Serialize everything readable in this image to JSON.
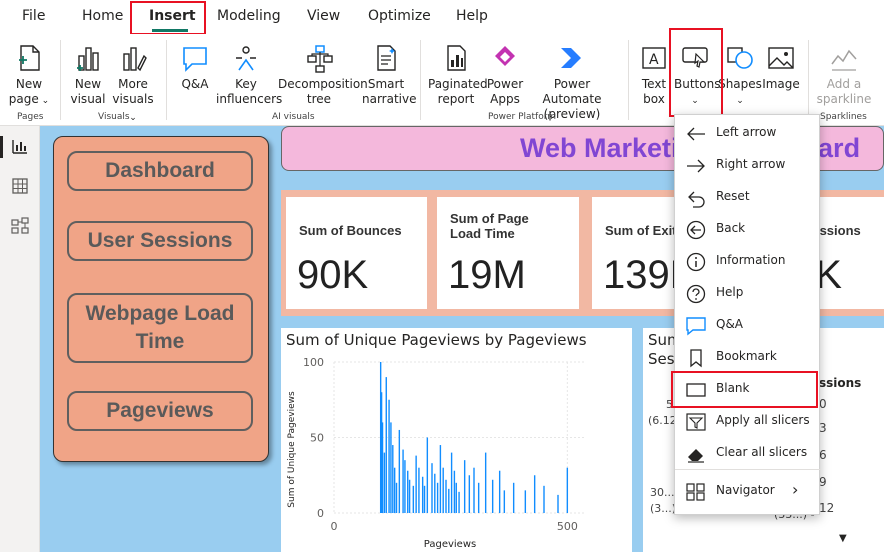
{
  "menu": {
    "items": [
      "File",
      "Home",
      "Insert",
      "Modeling",
      "View",
      "Optimize",
      "Help"
    ],
    "active": "Insert"
  },
  "ribbon": {
    "buttons": {
      "new_page": "New page",
      "new_visual": "New visual",
      "more_visuals": "More visuals",
      "qa": "Q&A",
      "key_influencers": "Key influencers",
      "decomposition_tree": "Decomposition tree",
      "smart_narrative": "Smart narrative",
      "paginated_report": "Paginated report",
      "power_apps": "Power Apps",
      "power_automate": "Power Automate (preview)",
      "text_box": "Text box",
      "buttons": "Buttons",
      "shapes": "Shapes",
      "image": "Image",
      "add_sparkline": "Add a sparkline"
    },
    "groups": {
      "pages": "Pages",
      "visuals": "Visuals",
      "ai_visuals": "AI visuals",
      "power_platform": "Power Platform",
      "sparklines": "Sparklines"
    }
  },
  "nav_buttons": [
    "Dashboard",
    "User Sessions",
    "Webpage Load Time",
    "Pageviews"
  ],
  "banner_title": "Web Marketing Dashboard",
  "kpis": [
    {
      "title": "Sum of Bounces",
      "value": "90K"
    },
    {
      "title": "Sum of Page Load Time",
      "value": "19M"
    },
    {
      "title": "Sum of Exits",
      "value": "139K"
    },
    {
      "title": "Sum of Sessions",
      "value": "5K"
    }
  ],
  "card2": {
    "title_line1": "Sum",
    "title_line2": "Ses",
    "header_right": "ssions",
    "left_values": [
      "5",
      "(6.12",
      "30...",
      "(3...)"
    ],
    "right_values": [
      "0",
      "3",
      "6",
      "9",
      "12"
    ],
    "right_truncated": "(33...) -"
  },
  "buttons_menu": {
    "items": [
      "Left arrow",
      "Right arrow",
      "Reset",
      "Back",
      "Information",
      "Help",
      "Q&A",
      "Bookmark",
      "Blank",
      "Apply all slicers",
      "Clear all slicers",
      "Navigator"
    ],
    "highlighted": "Blank"
  },
  "colors": {
    "accent": "#117865",
    "highlight_red": "#e81123",
    "canvas_bg": "#99cdf0",
    "nav_panel": "#f0a487",
    "banner_bg": "#f4b8dc",
    "banner_text": "#8146d3",
    "bar": "#118dff"
  },
  "chart_data": {
    "type": "bar",
    "title": "Sum of Unique Pageviews by Pageviews",
    "xlabel": "Pageviews",
    "ylabel": "Sum of Unique Pageviews",
    "xlim": [
      0,
      540
    ],
    "ylim": [
      0,
      100
    ],
    "x_ticks": [
      0,
      500
    ],
    "y_ticks": [
      0,
      50,
      100
    ],
    "grid": true,
    "x": [
      100,
      102,
      104,
      108,
      112,
      118,
      122,
      126,
      130,
      134,
      140,
      148,
      152,
      158,
      162,
      170,
      176,
      182,
      190,
      194,
      200,
      210,
      216,
      222,
      228,
      234,
      240,
      246,
      252,
      258,
      262,
      268,
      280,
      290,
      300,
      310,
      325,
      340,
      355,
      365,
      385,
      410,
      430,
      450,
      480,
      500
    ],
    "values": [
      100,
      80,
      60,
      40,
      90,
      75,
      60,
      45,
      30,
      20,
      55,
      42,
      35,
      28,
      22,
      18,
      38,
      30,
      24,
      18,
      50,
      33,
      26,
      20,
      45,
      30,
      22,
      16,
      40,
      28,
      20,
      14,
      35,
      25,
      30,
      20,
      40,
      22,
      28,
      15,
      20,
      15,
      25,
      18,
      12,
      30
    ]
  }
}
